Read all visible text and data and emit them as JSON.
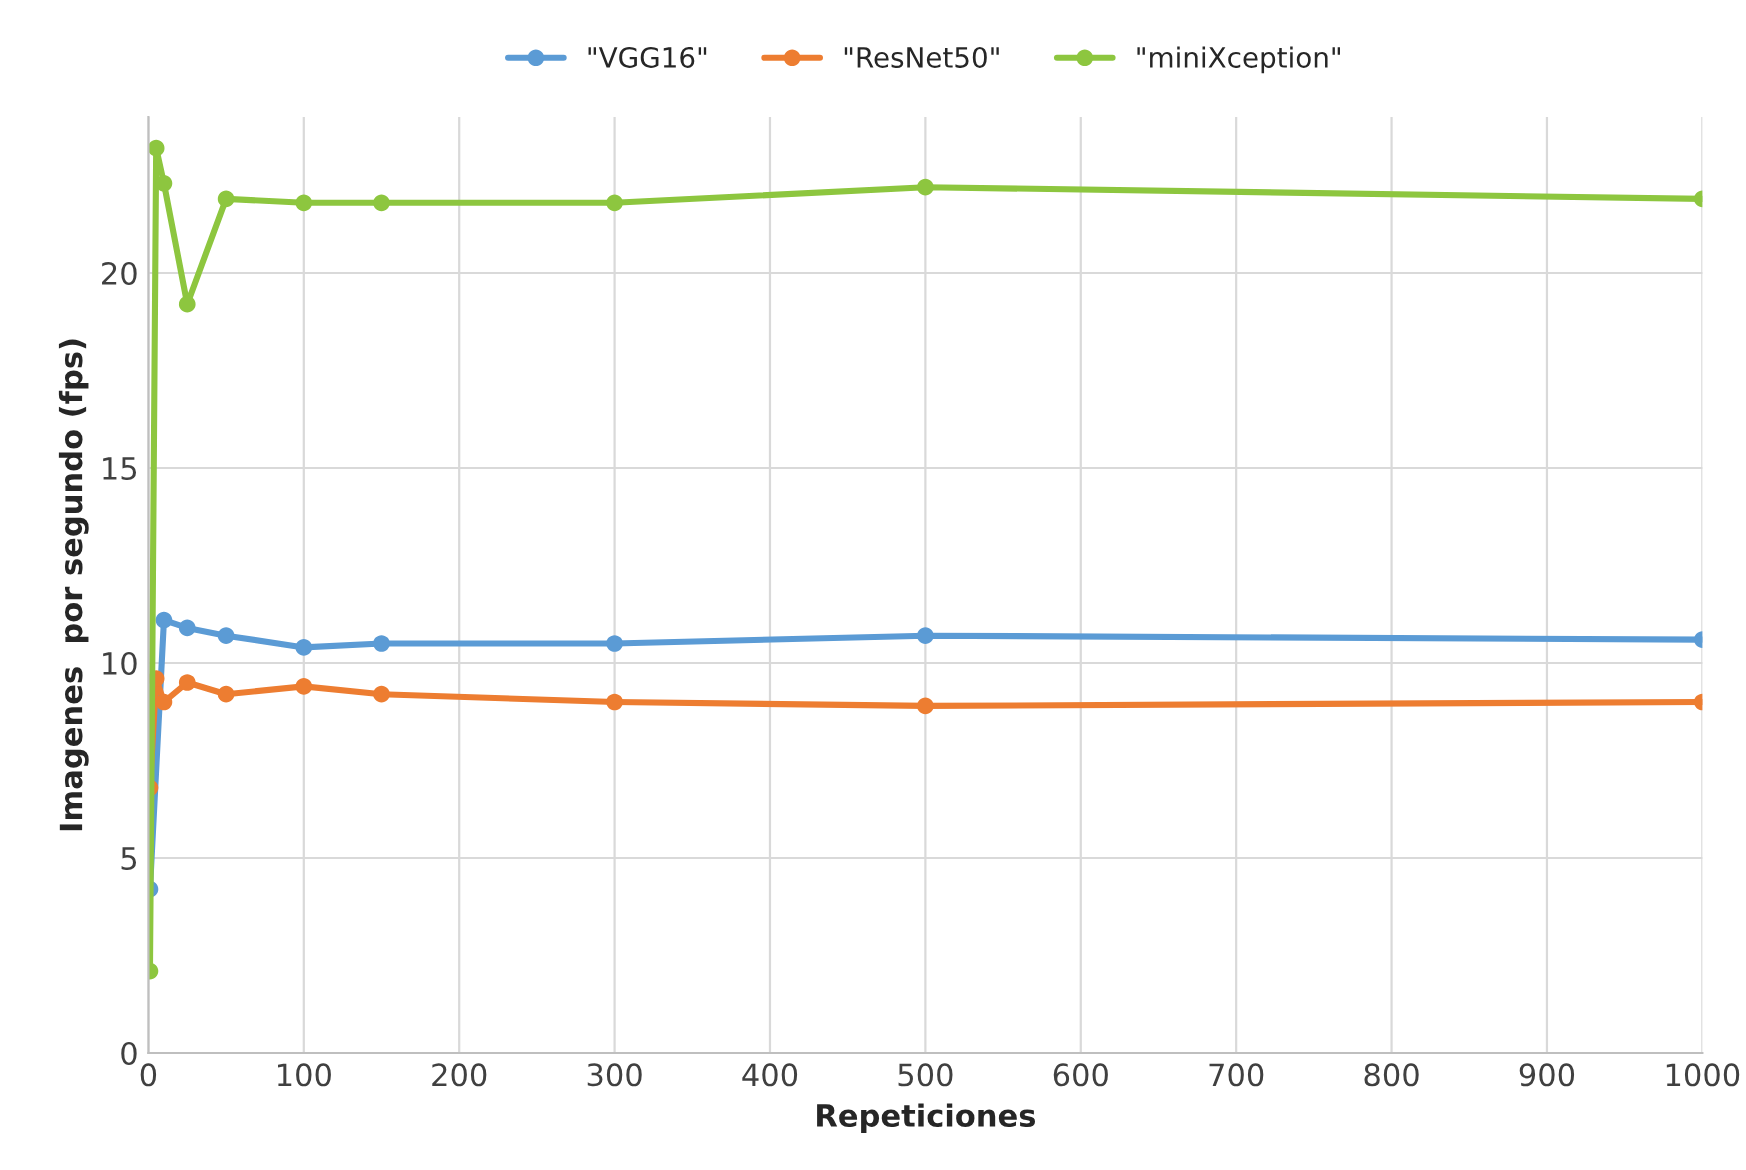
{
  "chart_data": {
    "type": "line",
    "xlabel": "Repeticiones",
    "ylabel": "Imagenes  por segundo (fps)",
    "x": [
      1,
      5,
      10,
      25,
      50,
      100,
      150,
      300,
      500,
      1000
    ],
    "series": [
      {
        "name": "\"VGG16\"",
        "color": "#5b9bd5",
        "values": [
          4.2,
          null,
          11.1,
          10.9,
          10.7,
          10.4,
          10.5,
          10.5,
          10.7,
          10.6
        ]
      },
      {
        "name": "\"ResNet50\"",
        "color": "#ed7d31",
        "values": [
          6.8,
          9.6,
          9.0,
          9.5,
          9.2,
          9.4,
          9.2,
          9.0,
          8.9,
          9.0
        ]
      },
      {
        "name": "\"miniXception\"",
        "color": "#8dc63f",
        "values": [
          2.1,
          23.2,
          22.3,
          19.2,
          21.9,
          21.8,
          21.8,
          21.8,
          22.2,
          21.9
        ]
      }
    ],
    "xlim": [
      0,
      1000
    ],
    "xticks": [
      0,
      100,
      200,
      300,
      400,
      500,
      600,
      700,
      800,
      900,
      1000
    ],
    "ylim": [
      0,
      24
    ],
    "yticks": [
      0,
      5,
      10,
      15,
      20
    ],
    "grid": true,
    "legend": "top",
    "marker": "circle",
    "line_style": "solid"
  }
}
